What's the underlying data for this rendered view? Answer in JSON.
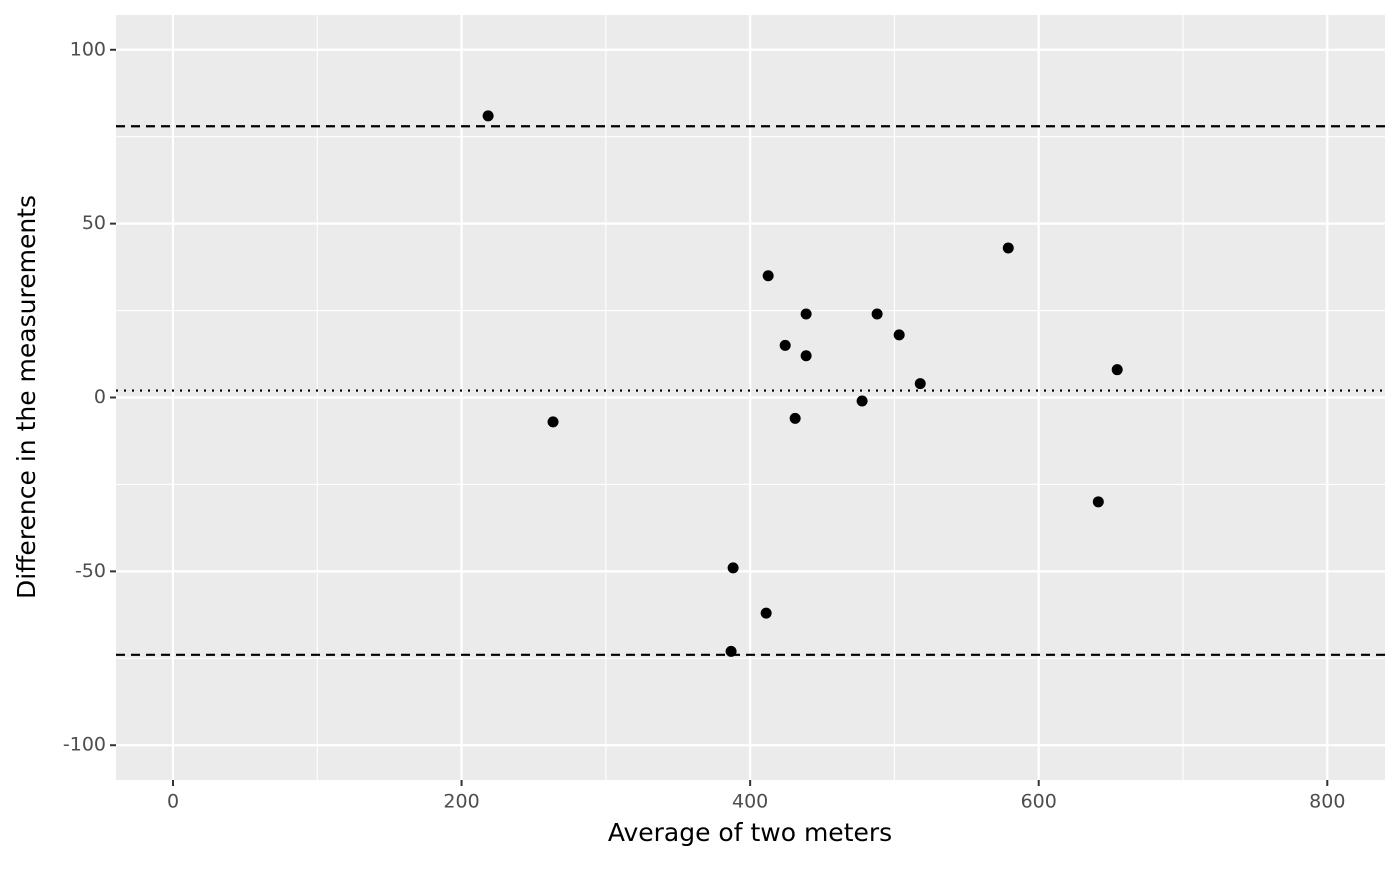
{
  "chart_data": {
    "type": "scatter",
    "x_label": "Average of two meters",
    "y_label": "Difference in the measurements",
    "x": [
      218.4,
      263.4,
      412.5,
      438.8,
      424.3,
      438.8,
      431.2,
      488,
      503.3,
      517.9,
      477.6,
      578.9,
      654.4,
      641.3,
      388.2,
      411.1,
      386.8
    ],
    "values": [
      81,
      -7,
      35,
      24,
      15,
      12,
      -6,
      24,
      18,
      4,
      -1,
      43,
      8,
      -30,
      -49,
      -62,
      -73
    ],
    "color": "#000000",
    "xlim": [
      -39.5,
      840
    ],
    "ylim": [
      -110,
      110
    ],
    "xticks": [
      0,
      200,
      400,
      600,
      800
    ],
    "yticks": [
      -100,
      -50,
      0,
      50,
      100
    ],
    "xminor": [
      100,
      300,
      500,
      700
    ],
    "yminor": [
      -75,
      -25,
      25,
      75
    ],
    "grid": true,
    "hlines": [
      {
        "value": 78,
        "style": "dashed"
      },
      {
        "value": 2,
        "style": "dotted"
      },
      {
        "value": -74,
        "style": "dashed"
      }
    ]
  }
}
